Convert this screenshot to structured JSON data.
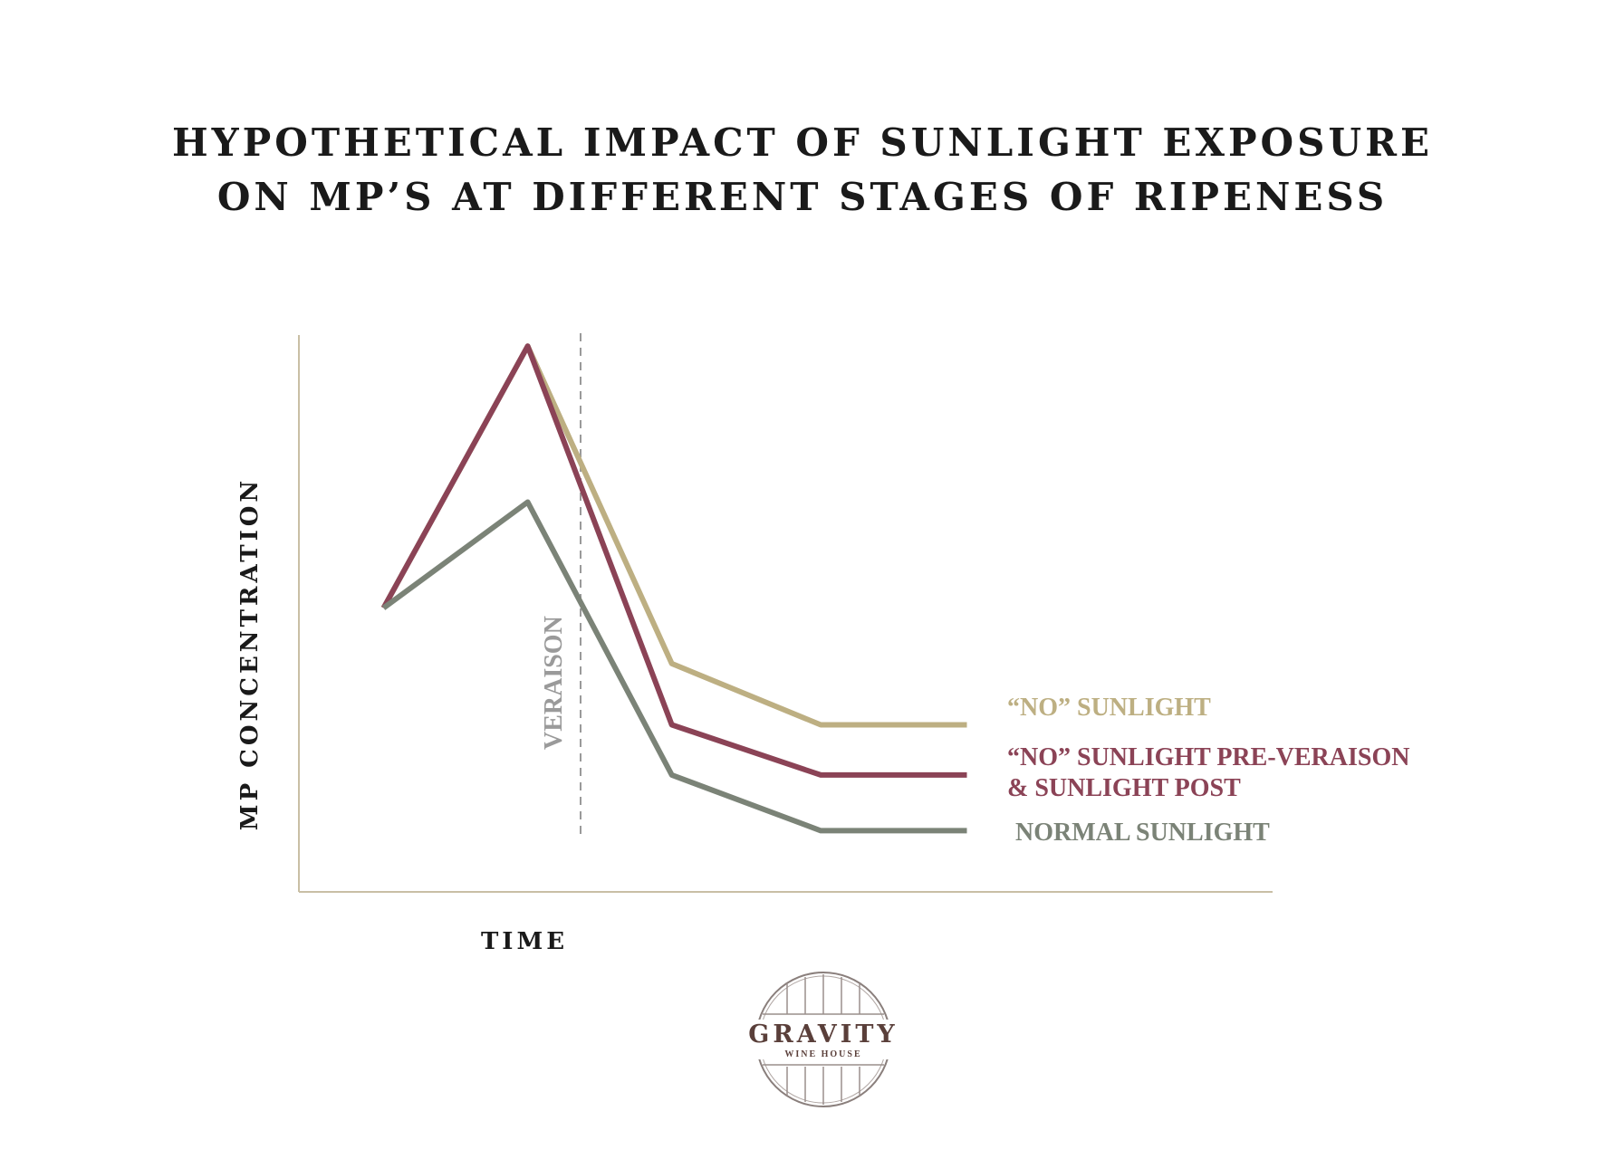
{
  "colors": {
    "axis": "#c9bfa5",
    "no_sunlight": "#bdaf82",
    "no_sunlight_pre": "#8b4356",
    "normal": "#7b8377",
    "veraison": "#9a9a9a",
    "title": "#1a1a1a",
    "logo": "#5a3f3a"
  },
  "logo": {
    "name": "GRAVITY",
    "sub": "WINE HOUSE"
  },
  "chart_data": {
    "type": "line",
    "title": "HYPOTHETICAL IMPACT OF SUNLIGHT EXPOSURE",
    "subtitle": "ON MP’S AT DIFFERENT STAGES OF RIPENESS",
    "xlabel": "TIME",
    "ylabel": "MP CONCENTRATION",
    "xlim": [
      0,
      1000
    ],
    "ylim": [
      0,
      100
    ],
    "grid": false,
    "legend": "right",
    "annotation": {
      "text": "VERAISON",
      "x": 290
    },
    "x": [
      87,
      235,
      383,
      536,
      686
    ],
    "series": [
      {
        "name": "“NO” SUNLIGHT",
        "name_lines": [
          "“NO” SUNLIGHT"
        ],
        "color_key": "no_sunlight",
        "values": [
          51,
          98,
          41,
          30,
          30
        ]
      },
      {
        "name": "“NO” SUNLIGHT PRE-VERAISON & SUNLIGHT POST",
        "name_lines": [
          "“NO” SUNLIGHT PRE-VERAISON",
          "& SUNLIGHT POST"
        ],
        "color_key": "no_sunlight_pre",
        "values": [
          51,
          98,
          30,
          21,
          21
        ]
      },
      {
        "name": "NORMAL SUNLIGHT",
        "name_lines": [
          "NORMAL SUNLIGHT"
        ],
        "color_key": "normal",
        "values": [
          51,
          70,
          21,
          11,
          11
        ]
      }
    ]
  }
}
